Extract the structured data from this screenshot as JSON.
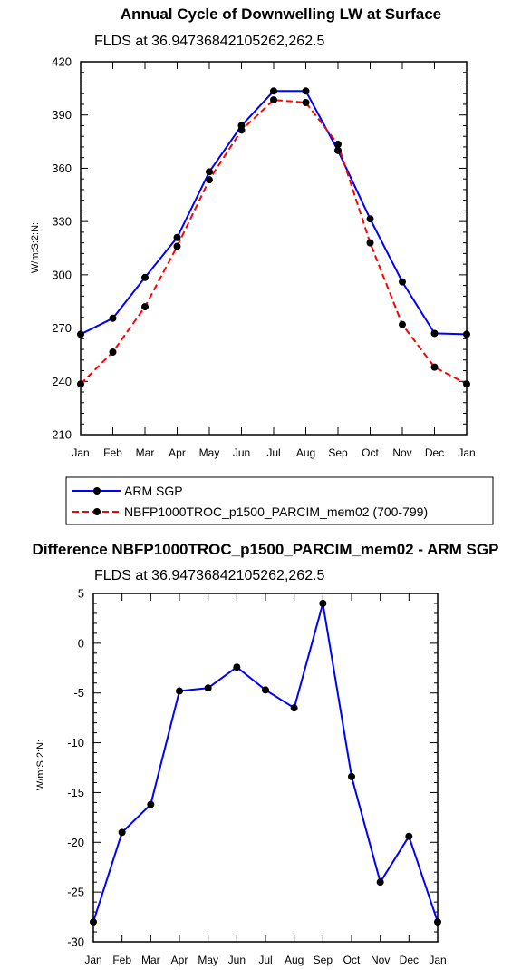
{
  "chart_data": [
    {
      "type": "line",
      "title": "Annual Cycle of Downwelling LW at Surface",
      "subtitle": "FLDS at 36.94736842105262,262.5",
      "ylabel": "W/m:S:2:N:",
      "categories": [
        "Jan",
        "Feb",
        "Mar",
        "Apr",
        "May",
        "Jun",
        "Jul",
        "Aug",
        "Sep",
        "Oct",
        "Nov",
        "Dec",
        "Jan"
      ],
      "ylim": [
        210,
        420
      ],
      "yticks": [
        210,
        240,
        270,
        300,
        330,
        360,
        390,
        420
      ],
      "series": [
        {
          "name": "ARM SGP",
          "color": "#0000ff",
          "dash": "solid",
          "values": [
            266.5,
            275.5,
            298.5,
            321,
            358,
            384,
            403.5,
            403.5,
            370,
            331.5,
            296,
            267,
            266.5
          ]
        },
        {
          "name": "NBFP1000TROC_p1500_PARCIM_mem02 (700-799)",
          "color": "#ff0000",
          "dash": "dashed",
          "values": [
            238.5,
            256.5,
            282,
            316,
            353.5,
            381.5,
            398.5,
            397,
            373.5,
            318,
            272,
            248,
            238.5
          ]
        }
      ]
    },
    {
      "type": "line",
      "title": "Difference NBFP1000TROC_p1500_PARCIM_mem02 - ARM SGP",
      "subtitle": "FLDS at 36.94736842105262,262.5",
      "ylabel": "W/m:S:2:N:",
      "categories": [
        "Jan",
        "Feb",
        "Mar",
        "Apr",
        "May",
        "Jun",
        "Jul",
        "Aug",
        "Sep",
        "Oct",
        "Nov",
        "Dec",
        "Jan"
      ],
      "ylim": [
        -30,
        5
      ],
      "yticks": [
        -30,
        -25,
        -20,
        -15,
        -10,
        -5,
        0,
        5
      ],
      "series": [
        {
          "color": "#0000ff",
          "dash": "solid",
          "values": [
            -28,
            -19,
            -16.2,
            -4.8,
            -4.5,
            -2.4,
            -4.7,
            -6.5,
            4,
            -13.4,
            -24,
            -19.4,
            -28
          ]
        }
      ]
    }
  ]
}
